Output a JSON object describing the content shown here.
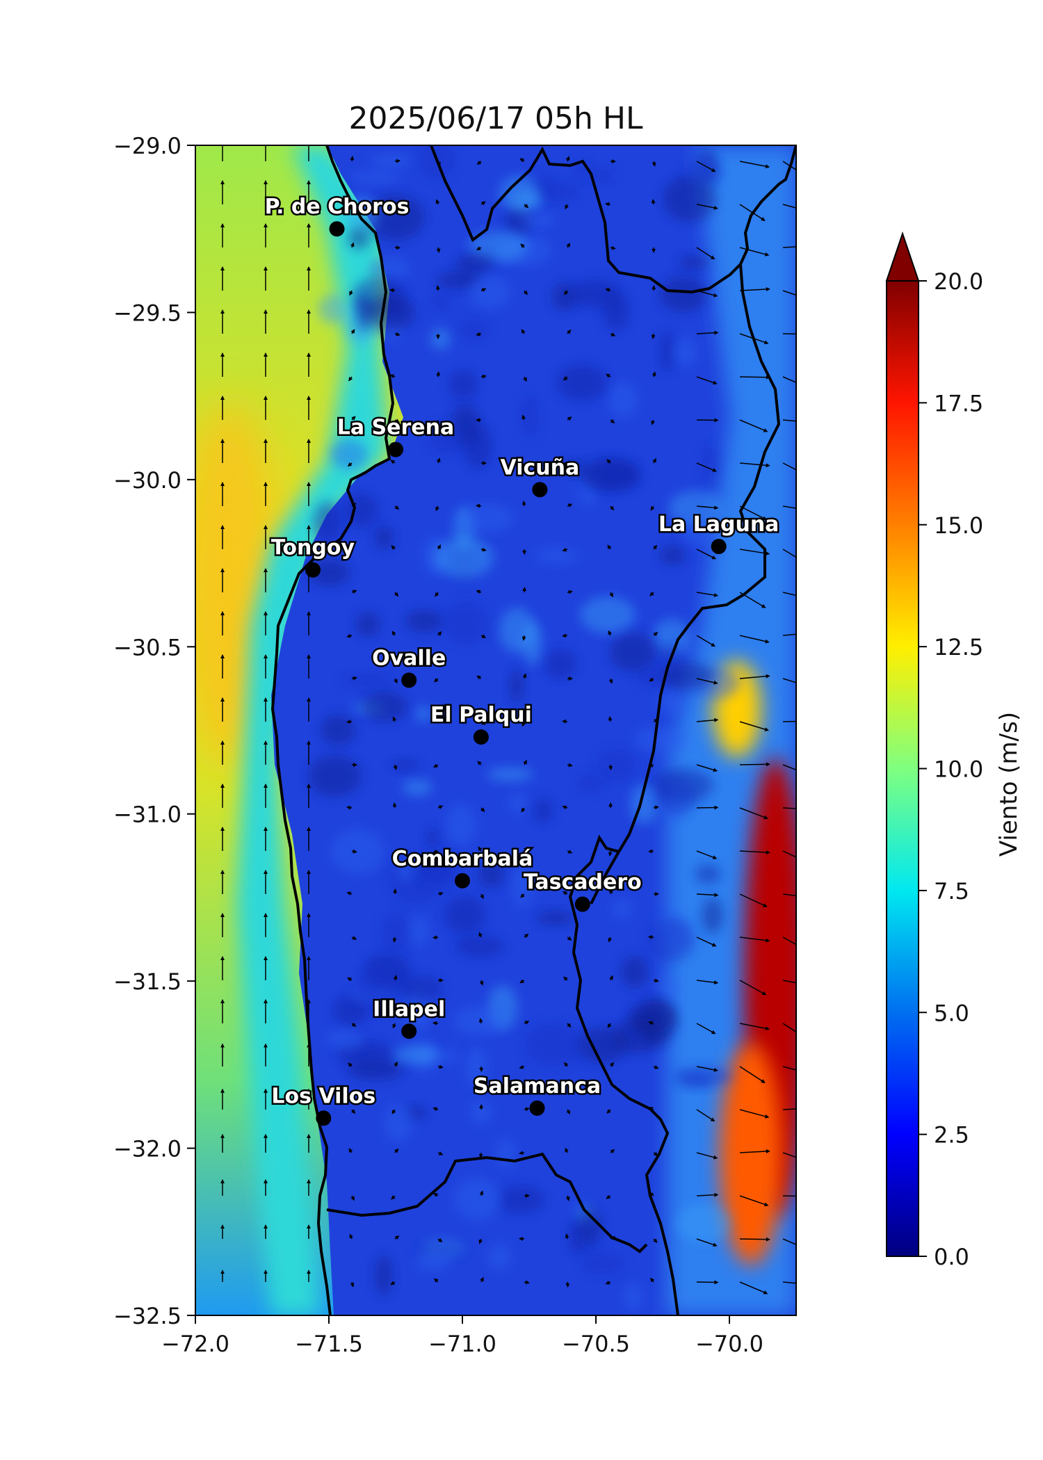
{
  "title": "2025/06/17 05h HL",
  "map": {
    "lon_range": [
      -72.0,
      -69.75
    ],
    "lat_range": [
      -32.5,
      -29.0
    ],
    "x_ticks": [
      -72.0,
      -71.5,
      -71.0,
      -70.5,
      -70.0
    ],
    "x_tick_labels": [
      "−72.0",
      "−71.5",
      "−71.0",
      "−70.5",
      "−70.0"
    ],
    "y_ticks": [
      -29.0,
      -29.5,
      -30.0,
      -30.5,
      -31.0,
      -31.5,
      -32.0,
      -32.5
    ],
    "y_tick_labels": [
      "−29.0",
      "−29.5",
      "−30.0",
      "−30.5",
      "−31.0",
      "−31.5",
      "−32.0",
      "−32.5"
    ],
    "colors": {
      "ocean_core": "#f2d21a",
      "ocean_mid": "#b9e83a",
      "ocean_coast": "#3ad7d8",
      "land_base": "#1f3fd9",
      "land_dark": "#0b1a8f",
      "land_light": "#3f8cf3",
      "andes_warm": "#ff5a00",
      "andes_hot": "#8b0000",
      "border": "#000000"
    },
    "cities": [
      {
        "name": "P. de Choros",
        "lon": -71.47,
        "lat": -29.25
      },
      {
        "name": "La Serena",
        "lon": -71.25,
        "lat": -29.91
      },
      {
        "name": "Vicuña",
        "lon": -70.71,
        "lat": -30.03
      },
      {
        "name": "Tongoy",
        "lon": -71.56,
        "lat": -30.27
      },
      {
        "name": "La Laguna",
        "lon": -70.04,
        "lat": -30.2
      },
      {
        "name": "Ovalle",
        "lon": -71.2,
        "lat": -30.6
      },
      {
        "name": "El Palqui",
        "lon": -70.93,
        "lat": -30.77
      },
      {
        "name": "Combarbalá",
        "lon": -71.0,
        "lat": -31.2
      },
      {
        "name": "Tascadero",
        "lon": -70.55,
        "lat": -31.27
      },
      {
        "name": "Illapel",
        "lon": -71.2,
        "lat": -31.65
      },
      {
        "name": "Los Vilos",
        "lon": -71.52,
        "lat": -31.91
      },
      {
        "name": "Salamanca",
        "lon": -70.72,
        "lat": -31.88
      }
    ]
  },
  "colorbar": {
    "label": "Viento (m/s)",
    "min": 0,
    "max": 20,
    "extend": "max",
    "ticks": [
      0.0,
      2.5,
      5.0,
      7.5,
      10.0,
      12.5,
      15.0,
      17.5,
      20.0
    ],
    "tick_labels": [
      "0.0",
      "2.5",
      "5.0",
      "7.5",
      "10.0",
      "12.5",
      "15.0",
      "17.5",
      "20.0"
    ],
    "stops": [
      "#00007f",
      "#0000ff",
      "#007fff",
      "#00ffff",
      "#7fff7f",
      "#ffff00",
      "#ff7f00",
      "#ff0000",
      "#7f0000"
    ]
  }
}
